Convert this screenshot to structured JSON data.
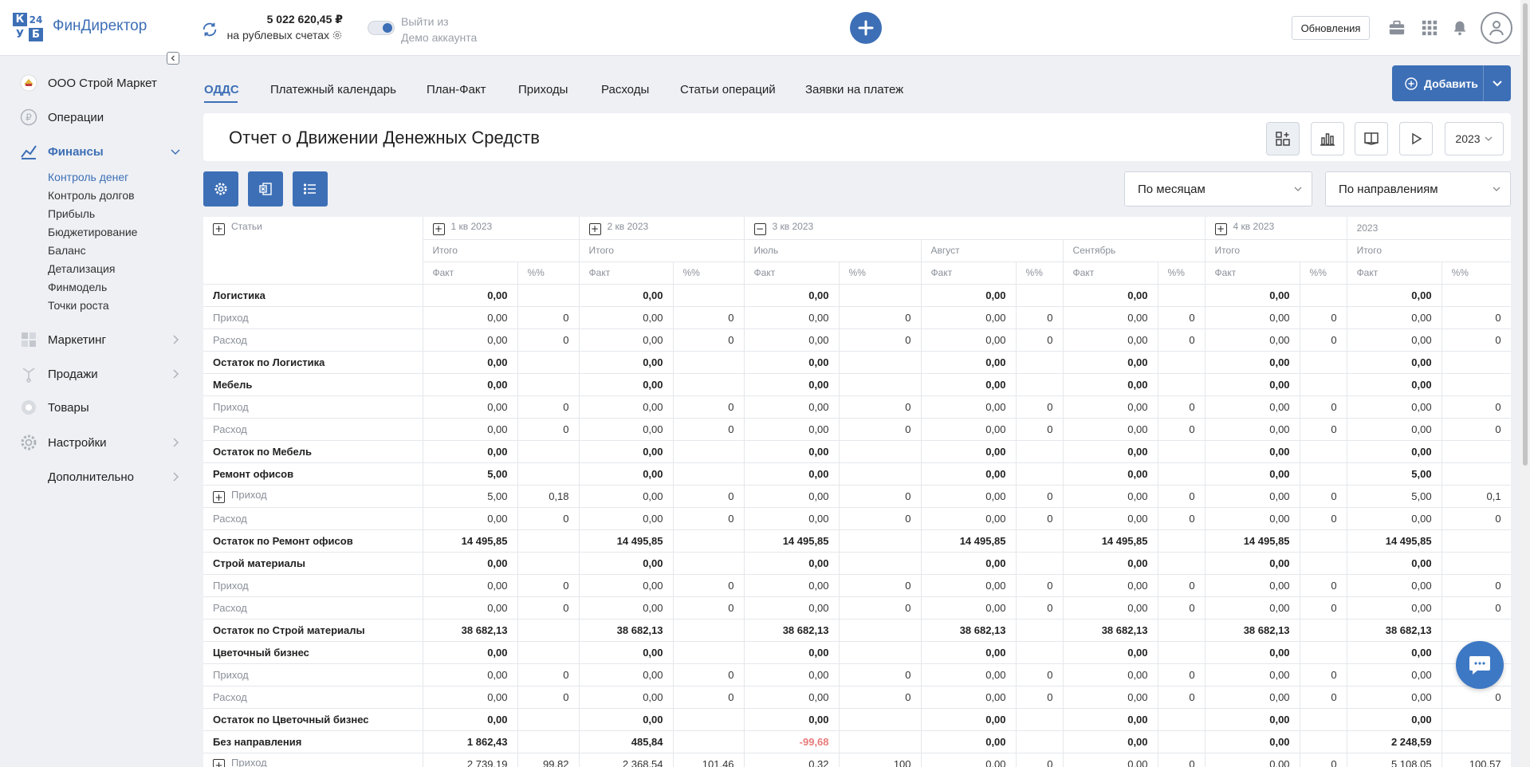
{
  "app": {
    "logo_letters": [
      "К",
      "24",
      "У",
      "Б"
    ],
    "brand": "ФинДиректор",
    "balance_amount": "5 022 620,45 ₽",
    "balance_sub": "на рублевых счетах",
    "demo_line1": "Выйти из",
    "demo_line2": "Демо аккаунта",
    "updates_label": "Обновления",
    "accent_color": "#3d6fb6"
  },
  "sidebar": {
    "company": "ООО Строй Маркет",
    "items": [
      {
        "label": "Операции",
        "icon": "ruble-icon"
      },
      {
        "label": "Финансы",
        "icon": "chart-icon"
      },
      {
        "label": "Маркетинг",
        "icon": "marketing-icon"
      },
      {
        "label": "Продажи",
        "icon": "sales-icon"
      },
      {
        "label": "Товары",
        "icon": "goods-icon"
      },
      {
        "label": "Настройки",
        "icon": "gear-icon"
      },
      {
        "label": "Дополнительно",
        "icon": ""
      }
    ],
    "finance_subitems": [
      "Контроль денег",
      "Контроль долгов",
      "Прибыль",
      "Бюджетирование",
      "Баланс",
      "Детализация",
      "Финмодель",
      "Точки роста"
    ]
  },
  "tabs": [
    "ОДДС",
    "Платежный календарь",
    "План-Факт",
    "Приходы",
    "Расходы",
    "Статьи операций",
    "Заявки на платеж"
  ],
  "add_button": "Добавить",
  "report": {
    "title": "Отчет о Движении Денежных Средств",
    "year": "2023",
    "period_select": "По месяцам",
    "direction_select": "По направлениям"
  },
  "table": {
    "header": {
      "articles": "Статьи",
      "q1": "1 кв 2023",
      "q2": "2 кв 2023",
      "q3": "3 кв 2023",
      "q4": "4 кв 2023",
      "year": "2023",
      "total": "Итого",
      "july": "Июль",
      "august": "Август",
      "september": "Сентябрь",
      "fact": "Факт",
      "pct": "%%"
    },
    "rows": [
      {
        "label": "Логистика",
        "type": "group",
        "v": [
          "0,00",
          "",
          "0,00",
          "",
          "0,00",
          "",
          "0,00",
          "",
          "0,00",
          "",
          "0,00",
          "",
          "0,00",
          ""
        ]
      },
      {
        "label": "Приход",
        "type": "sub",
        "v": [
          "0,00",
          "0",
          "0,00",
          "0",
          "0,00",
          "0",
          "0,00",
          "0",
          "0,00",
          "0",
          "0,00",
          "0",
          "0,00",
          "0"
        ]
      },
      {
        "label": "Расход",
        "type": "sub",
        "v": [
          "0,00",
          "0",
          "0,00",
          "0",
          "0,00",
          "0",
          "0,00",
          "0",
          "0,00",
          "0",
          "0,00",
          "0",
          "0,00",
          "0"
        ]
      },
      {
        "label": "Остаток по Логистика",
        "type": "group",
        "v": [
          "0,00",
          "",
          "0,00",
          "",
          "0,00",
          "",
          "0,00",
          "",
          "0,00",
          "",
          "0,00",
          "",
          "0,00",
          ""
        ]
      },
      {
        "label": "Мебель",
        "type": "group",
        "v": [
          "0,00",
          "",
          "0,00",
          "",
          "0,00",
          "",
          "0,00",
          "",
          "0,00",
          "",
          "0,00",
          "",
          "0,00",
          ""
        ]
      },
      {
        "label": "Приход",
        "type": "sub",
        "v": [
          "0,00",
          "0",
          "0,00",
          "0",
          "0,00",
          "0",
          "0,00",
          "0",
          "0,00",
          "0",
          "0,00",
          "0",
          "0,00",
          "0"
        ]
      },
      {
        "label": "Расход",
        "type": "sub",
        "v": [
          "0,00",
          "0",
          "0,00",
          "0",
          "0,00",
          "0",
          "0,00",
          "0",
          "0,00",
          "0",
          "0,00",
          "0",
          "0,00",
          "0"
        ]
      },
      {
        "label": "Остаток по Мебель",
        "type": "group",
        "v": [
          "0,00",
          "",
          "0,00",
          "",
          "0,00",
          "",
          "0,00",
          "",
          "0,00",
          "",
          "0,00",
          "",
          "0,00",
          ""
        ]
      },
      {
        "label": "Ремонт офисов",
        "type": "group",
        "v": [
          "5,00",
          "",
          "0,00",
          "",
          "0,00",
          "",
          "0,00",
          "",
          "0,00",
          "",
          "0,00",
          "",
          "5,00",
          ""
        ]
      },
      {
        "label": "Приход",
        "type": "sub",
        "expand": true,
        "v": [
          "5,00",
          "0,18",
          "0,00",
          "0",
          "0,00",
          "0",
          "0,00",
          "0",
          "0,00",
          "0",
          "0,00",
          "0",
          "5,00",
          "0,1"
        ]
      },
      {
        "label": "Расход",
        "type": "sub",
        "v": [
          "0,00",
          "0",
          "0,00",
          "0",
          "0,00",
          "0",
          "0,00",
          "0",
          "0,00",
          "0",
          "0,00",
          "0",
          "0,00",
          "0"
        ]
      },
      {
        "label": "Остаток по Ремонт офисов",
        "type": "group",
        "v": [
          "14 495,85",
          "",
          "14 495,85",
          "",
          "14 495,85",
          "",
          "14 495,85",
          "",
          "14 495,85",
          "",
          "14 495,85",
          "",
          "14 495,85",
          ""
        ]
      },
      {
        "label": "Строй материалы",
        "type": "group",
        "v": [
          "0,00",
          "",
          "0,00",
          "",
          "0,00",
          "",
          "0,00",
          "",
          "0,00",
          "",
          "0,00",
          "",
          "0,00",
          ""
        ]
      },
      {
        "label": "Приход",
        "type": "sub",
        "v": [
          "0,00",
          "0",
          "0,00",
          "0",
          "0,00",
          "0",
          "0,00",
          "0",
          "0,00",
          "0",
          "0,00",
          "0",
          "0,00",
          "0"
        ]
      },
      {
        "label": "Расход",
        "type": "sub",
        "v": [
          "0,00",
          "0",
          "0,00",
          "0",
          "0,00",
          "0",
          "0,00",
          "0",
          "0,00",
          "0",
          "0,00",
          "0",
          "0,00",
          "0"
        ]
      },
      {
        "label": "Остаток по Строй материалы",
        "type": "group",
        "v": [
          "38 682,13",
          "",
          "38 682,13",
          "",
          "38 682,13",
          "",
          "38 682,13",
          "",
          "38 682,13",
          "",
          "38 682,13",
          "",
          "38 682,13",
          ""
        ]
      },
      {
        "label": "Цветочный бизнес",
        "type": "group",
        "v": [
          "0,00",
          "",
          "0,00",
          "",
          "0,00",
          "",
          "0,00",
          "",
          "0,00",
          "",
          "0,00",
          "",
          "0,00",
          ""
        ]
      },
      {
        "label": "Приход",
        "type": "sub",
        "v": [
          "0,00",
          "0",
          "0,00",
          "0",
          "0,00",
          "0",
          "0,00",
          "0",
          "0,00",
          "0",
          "0,00",
          "0",
          "0,00",
          "0"
        ]
      },
      {
        "label": "Расход",
        "type": "sub",
        "v": [
          "0,00",
          "0",
          "0,00",
          "0",
          "0,00",
          "0",
          "0,00",
          "0",
          "0,00",
          "0",
          "0,00",
          "0",
          "0,00",
          "0"
        ]
      },
      {
        "label": "Остаток по Цветочный бизнес",
        "type": "group",
        "v": [
          "0,00",
          "",
          "0,00",
          "",
          "0,00",
          "",
          "0,00",
          "",
          "0,00",
          "",
          "0,00",
          "",
          "0,00",
          ""
        ]
      },
      {
        "label": "Без направления",
        "type": "group",
        "neg_col": 4,
        "v": [
          "1 862,43",
          "",
          "485,84",
          "",
          "-99,68",
          "",
          "0,00",
          "",
          "0,00",
          "",
          "0,00",
          "",
          "2 248,59",
          ""
        ]
      },
      {
        "label": "Приход",
        "type": "sub",
        "expand": true,
        "v": [
          "2 739,19",
          "99,82",
          "2 368,54",
          "101,46",
          "0,32",
          "100",
          "0,00",
          "0",
          "0,00",
          "0",
          "0,00",
          "0",
          "5 108,05",
          "100,57"
        ]
      }
    ]
  }
}
